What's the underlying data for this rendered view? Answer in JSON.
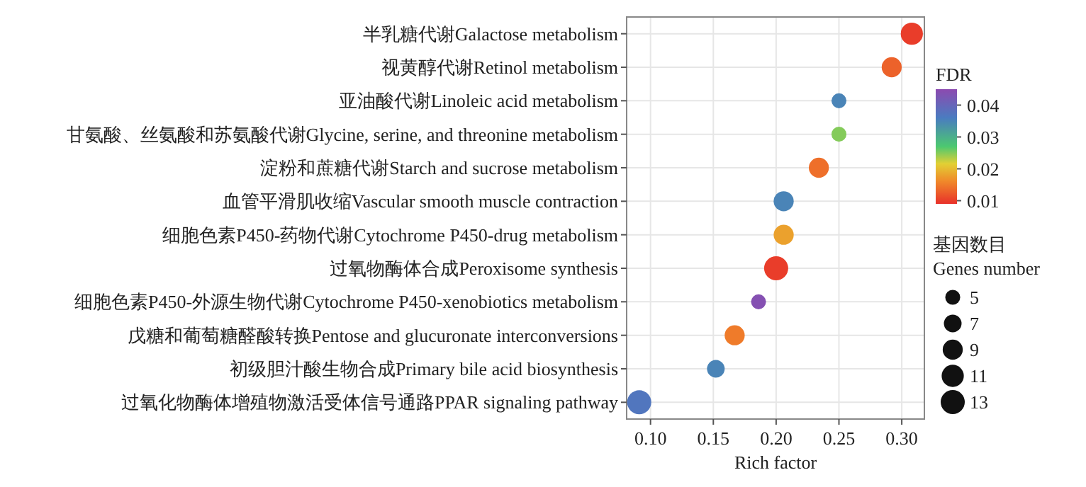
{
  "chart_data": {
    "type": "bubble",
    "orientation": "horizontal",
    "categories": [
      "半乳糖代谢Galactose metabolism",
      "视黄醇代谢Retinol metabolism",
      "亚油酸代谢Linoleic acid metabolism",
      "甘氨酸、丝氨酸和苏氨酸代谢Glycine, serine, and threonine metabolism",
      "淀粉和蔗糖代谢Starch and sucrose metabolism",
      "血管平滑肌收缩Vascular smooth muscle contraction",
      "细胞色素P450-药物代谢Cytochrome P450-drug metabolism",
      "过氧物酶体合成Peroxisome synthesis",
      "细胞色素P450-外源生物代谢Cytochrome P450-xenobiotics metabolism",
      "戊糖和葡萄糖醛酸转换Pentose and glucuronate interconversions",
      "初级胆汁酸生物合成Primary bile acid biosynthesis",
      "过氧化物酶体增殖物激活受体信号通路PPAR signaling pathway"
    ],
    "values": [
      0.308,
      0.292,
      0.25,
      0.25,
      0.234,
      0.206,
      0.206,
      0.2,
      0.186,
      0.167,
      0.152,
      0.091
    ],
    "sizes": [
      11,
      9,
      5,
      5,
      9,
      9,
      9,
      13,
      5,
      9,
      7,
      13
    ],
    "cvalues": [
      0.01,
      0.013,
      0.035,
      0.025,
      0.014,
      0.035,
      0.018,
      0.01,
      0.044,
      0.015,
      0.035,
      0.037
    ],
    "xlim": [
      0.081,
      0.318
    ],
    "xticks": [
      {
        "value": 0.1,
        "label": "0.10"
      },
      {
        "value": 0.15,
        "label": "0.15"
      },
      {
        "value": 0.2,
        "label": "0.20"
      },
      {
        "value": 0.25,
        "label": "0.25"
      },
      {
        "value": 0.3,
        "label": "0.30"
      }
    ],
    "xlabel": "Rich factor",
    "clabel": "FDR",
    "clim": [
      0.009,
      0.045
    ],
    "cticks": [
      0.01,
      0.02,
      0.03,
      0.04
    ],
    "legend_title": "基因数目\nGenes number",
    "size_legend": [
      5,
      7,
      9,
      11,
      13
    ],
    "grid": true
  }
}
